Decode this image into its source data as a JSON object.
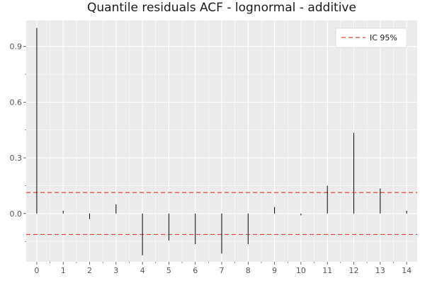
{
  "chart_data": {
    "type": "bar",
    "title": "Quantile residuals ACF - lognormal - additive",
    "xlabel": "",
    "ylabel": "",
    "x": [
      0,
      1,
      2,
      3,
      4,
      5,
      6,
      7,
      8,
      9,
      10,
      11,
      12,
      13,
      14
    ],
    "values": [
      1.0,
      0.015,
      -0.03,
      0.05,
      -0.225,
      -0.145,
      -0.165,
      -0.215,
      -0.165,
      0.035,
      -0.01,
      0.15,
      0.435,
      0.135,
      0.015
    ],
    "xlim": [
      -0.4,
      14.4
    ],
    "ylim": [
      -0.26,
      1.04
    ],
    "x_ticks": [
      0,
      1,
      2,
      3,
      4,
      5,
      6,
      7,
      8,
      9,
      10,
      11,
      12,
      13,
      14
    ],
    "y_ticks": [
      0.0,
      0.3,
      0.6,
      0.9
    ],
    "y_tick_labels": [
      "0.0",
      "0.3",
      "0.6",
      "0.9"
    ],
    "confidence_band": {
      "upper": 0.113,
      "lower": -0.113,
      "label": "IC 95%",
      "color": "#e8413c"
    },
    "legend": {
      "entries": [
        "IC 95%"
      ],
      "position": "top-right"
    },
    "grid": true,
    "colors": {
      "panel_background": "#ebebeb",
      "grid": "#ffffff",
      "bar": "#000000"
    }
  }
}
